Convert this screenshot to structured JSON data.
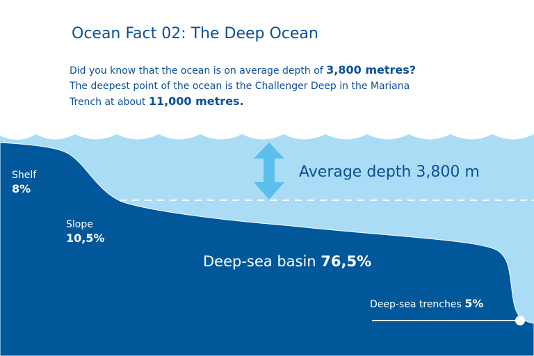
{
  "title": "Ocean Fact 02: The Deep Ocean",
  "intro": {
    "line1_pre": "Did you know that the ocean is on average depth of ",
    "line1_bold": "3,800 metres?",
    "line2": "The deepest point of the ocean is the Challenger Deep in the Mariana",
    "line3_pre": "Trench at about ",
    "line3_bold": "11,000 metres."
  },
  "average_depth_label": "Average depth 3,800 m",
  "zones": {
    "shelf": {
      "label": "Shelf",
      "value": "8%"
    },
    "slope": {
      "label": "Slope",
      "value": "10,5%"
    },
    "basin": {
      "label": "Deep-sea basin",
      "value": "76,5%"
    },
    "trenches": {
      "label": "Deep-sea trenches",
      "value": "5%"
    }
  },
  "colors": {
    "deep": "#00589b",
    "water": "#aadcf5",
    "arrow": "#5bbfee",
    "text": "#0b4f96"
  }
}
